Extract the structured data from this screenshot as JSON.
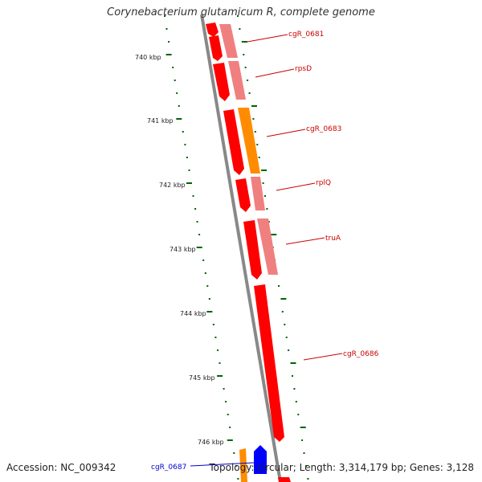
{
  "title": "Corynebacterium glutamicum R, complete genome",
  "accession": "Accession: NC_009342",
  "topology": "Topology: circular; Length: 3,314,179 bp; Genes: 3,128",
  "kbp_labels": [
    "740 kbp",
    "741 kbp",
    "742 kbp",
    "743 kbp",
    "744 kbp",
    "745 kbp",
    "746 kbp"
  ],
  "genes": [
    {
      "name": "cgR_0681",
      "color": "#cc0000"
    },
    {
      "name": "rpsD",
      "color": "#cc0000"
    },
    {
      "name": "cgR_0683",
      "color": "#cc0000"
    },
    {
      "name": "rplQ",
      "color": "#cc0000"
    },
    {
      "name": "truA",
      "color": "#cc0000"
    },
    {
      "name": "cgR_0686",
      "color": "#cc0000"
    },
    {
      "name": "cgR_0687",
      "color": "#0000cc"
    }
  ],
  "colors": {
    "cds": "#ff0000",
    "cds_light": "#f08080",
    "cds_orange": "#ff8c00",
    "cds_blue": "#0000ff",
    "backbone": "#808080",
    "tick": "#006400"
  }
}
